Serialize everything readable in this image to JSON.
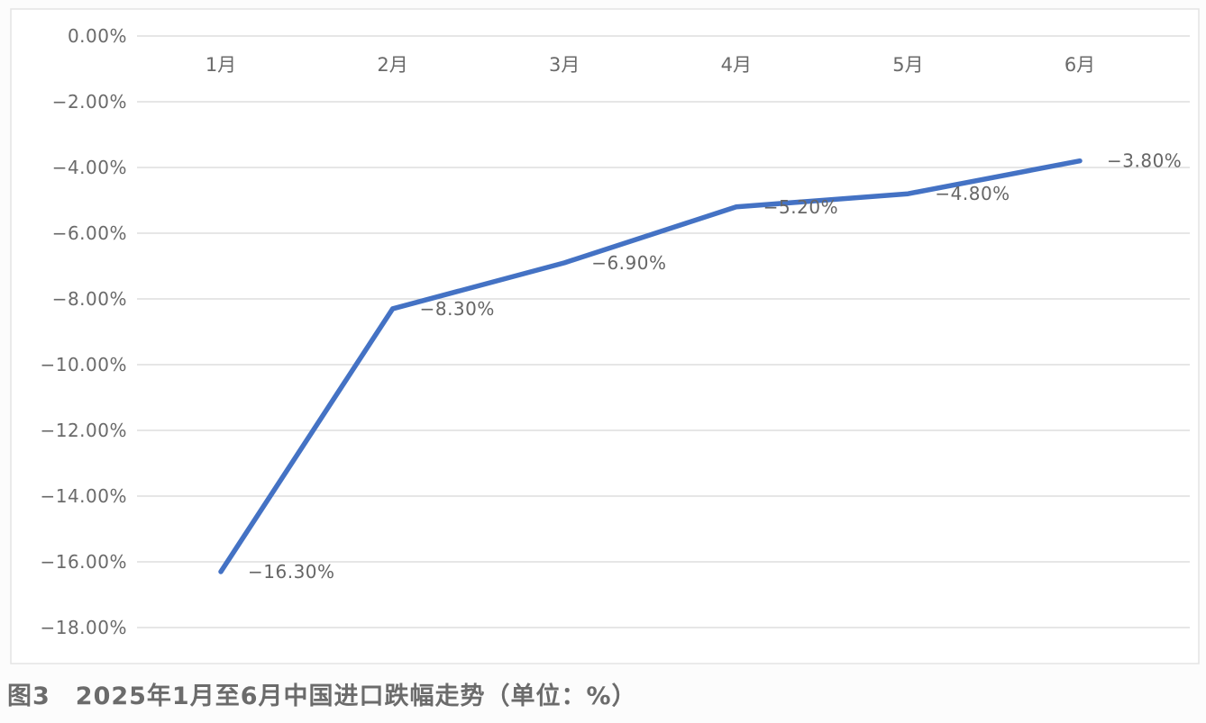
{
  "figure_caption": "图3　2025年1月至6月中国进口跌幅走势（单位：%）",
  "chart_data": {
    "type": "line",
    "title": "",
    "xlabel": "",
    "ylabel": "",
    "unit": "%",
    "categories": [
      "1月",
      "2月",
      "3月",
      "4月",
      "5月",
      "6月"
    ],
    "series": [
      {
        "name": "中国进口跌幅",
        "values": [
          -16.3,
          -8.3,
          -6.9,
          -5.2,
          -4.8,
          -3.8
        ],
        "data_labels": [
          "−16.30%",
          "−8.30%",
          "−6.90%",
          "−5.20%",
          "−4.80%",
          "−3.80%"
        ]
      }
    ],
    "y_ticks": [
      {
        "value": 0,
        "label": "0.00%"
      },
      {
        "value": -2,
        "label": "−2.00%"
      },
      {
        "value": -4,
        "label": "−4.00%"
      },
      {
        "value": -6,
        "label": "−6.00%"
      },
      {
        "value": -8,
        "label": "−8.00%"
      },
      {
        "value": -10,
        "label": "−10.00%"
      },
      {
        "value": -12,
        "label": "−12.00%"
      },
      {
        "value": -14,
        "label": "−14.00%"
      },
      {
        "value": -16,
        "label": "−16.00%"
      },
      {
        "value": -18,
        "label": "−18.00%"
      }
    ],
    "ylim": [
      -18,
      0
    ],
    "grid": true,
    "legend_position": "none",
    "x_labels_position": "top",
    "markers": false,
    "colors": {
      "line": "#4472C4",
      "grid": "#d6d6d6",
      "tick_text": "#6a6a6a",
      "data_label_text": "#666666",
      "frame_border": "#e3e3e3",
      "plot_background": "#ffffff"
    }
  }
}
